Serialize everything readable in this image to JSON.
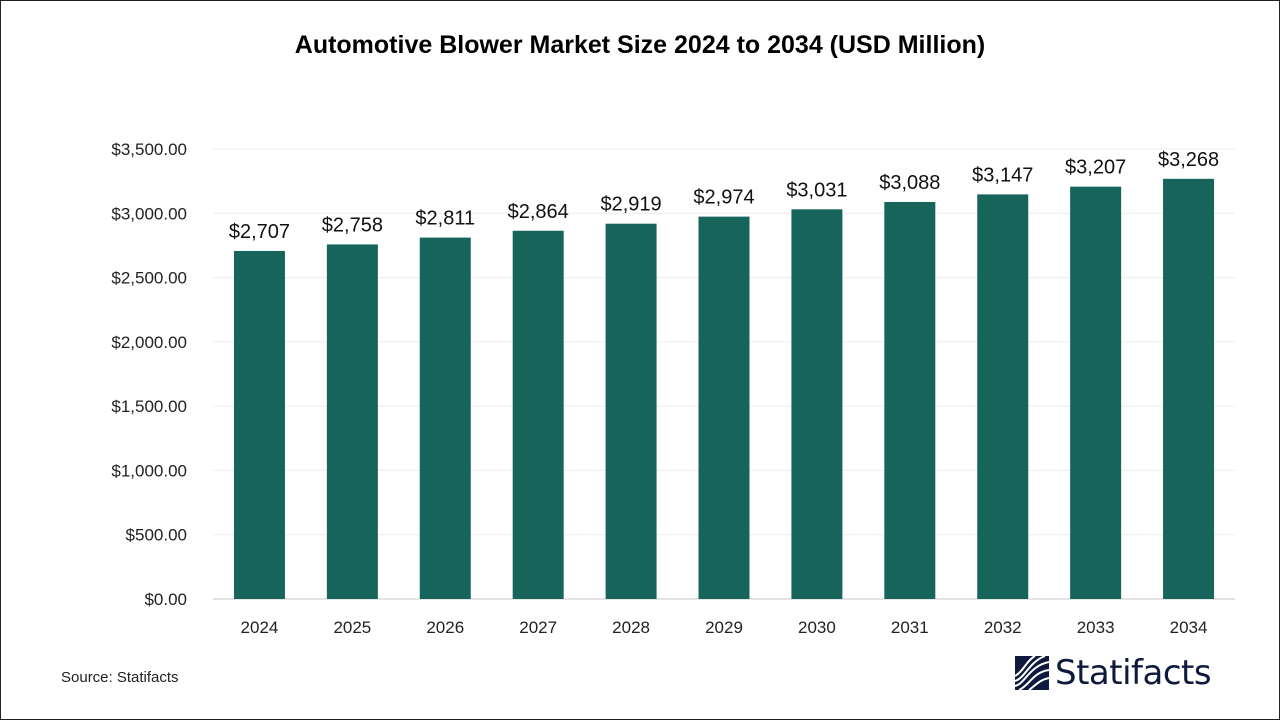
{
  "chart_data": {
    "type": "bar",
    "title": "Automotive Blower Market Size 2024 to 2034 (USD Million)",
    "categories": [
      "2024",
      "2025",
      "2026",
      "2027",
      "2028",
      "2029",
      "2030",
      "2031",
      "2032",
      "2033",
      "2034"
    ],
    "values": [
      2707,
      2758,
      2811,
      2864,
      2919,
      2974,
      3031,
      3088,
      3147,
      3207,
      3268
    ],
    "data_labels": [
      "$2,707",
      "$2,758",
      "$2,811",
      "$2,864",
      "$2,919",
      "$2,974",
      "$3,031",
      "$3,088",
      "$3,147",
      "$3,207",
      "$3,268"
    ],
    "yticks": [
      "$0.00",
      "$500.00",
      "$1,000.00",
      "$1,500.00",
      "$2,000.00",
      "$2,500.00",
      "$3,000.00",
      "$3,500.00"
    ],
    "ylim": [
      0,
      3500
    ],
    "grid": true,
    "bar_color": "#17645a",
    "xlabel": "",
    "ylabel": ""
  },
  "source": "Source: Statifacts",
  "logo": {
    "text": "Statifacts",
    "color": "#0e1a3d"
  }
}
